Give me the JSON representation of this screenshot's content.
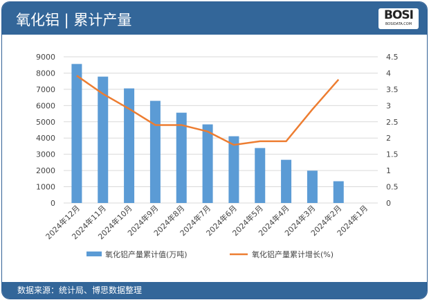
{
  "header": {
    "title": "氧化铝 | 累计产量",
    "logo_text": "BOSI",
    "logo_sub": "BOSIDATA.COM"
  },
  "footer": {
    "source": "数据来源：统计局、博思数据整理"
  },
  "colors": {
    "header": "#336699",
    "bar": "#5b9bd5",
    "line": "#ed7d31"
  },
  "chart_data": {
    "type": "bar+line",
    "categories": [
      "2024年12月",
      "2024年11月",
      "2024年10月",
      "2024年9月",
      "2024年8月",
      "2024年7月",
      "2024年6月",
      "2024年5月",
      "2024年4月",
      "2024年3月",
      "2024年2月",
      "2024年1月"
    ],
    "series": [
      {
        "name": "氧化铝产量累计值(万吨)",
        "type": "bar",
        "axis": "left",
        "values": [
          8560,
          7780,
          7055,
          6290,
          5560,
          4840,
          4110,
          3385,
          2660,
          1990,
          1340,
          null
        ]
      },
      {
        "name": "氧化铝产量累计增长(%)",
        "type": "line",
        "axis": "right",
        "values": [
          3.92,
          3.36,
          2.9,
          2.4,
          2.4,
          2.2,
          1.79,
          1.9,
          1.9,
          2.88,
          3.8,
          null
        ]
      }
    ],
    "ylim": [
      0,
      9000
    ],
    "yticks": [
      0,
      1000,
      2000,
      3000,
      4000,
      5000,
      6000,
      7000,
      8000,
      9000
    ],
    "y2lim": [
      0,
      4.5
    ],
    "y2ticks": [
      0,
      0.5,
      1,
      1.5,
      2,
      2.5,
      3,
      3.5,
      4,
      4.5
    ],
    "grid": true,
    "legend": "bottom"
  }
}
